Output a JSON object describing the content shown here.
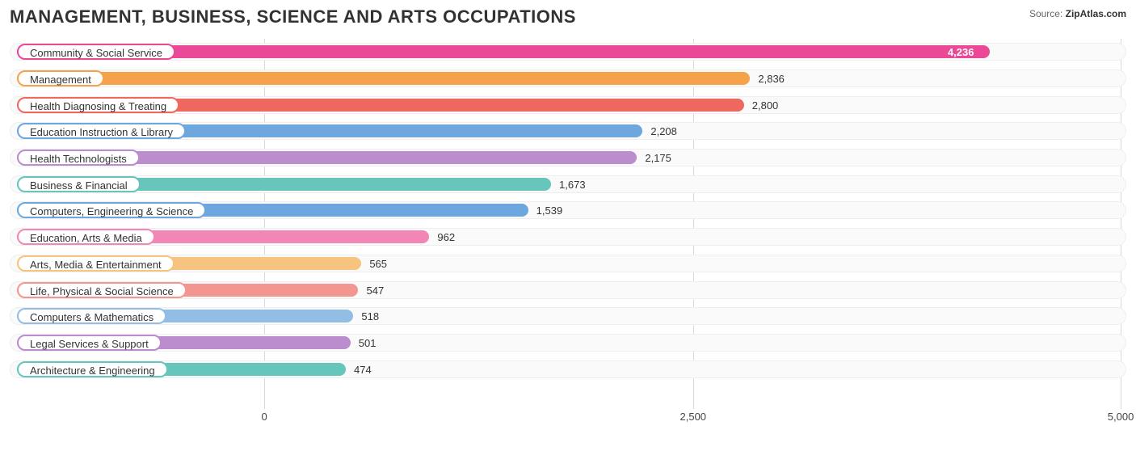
{
  "header": {
    "title": "MANAGEMENT, BUSINESS, SCIENCE AND ARTS OCCUPATIONS",
    "source_label": "Source:",
    "source_value": "ZipAtlas.com"
  },
  "chart": {
    "type": "bar-horizontal",
    "xlim": [
      -500,
      5200
    ],
    "zero_offset_pct": 22.8,
    "scale_pct_per_unit": 0.01535,
    "track_bg": "#fafafa",
    "track_border": "#eeeeee",
    "grid_color": "#d9d9d9",
    "title_fontsize": 22,
    "label_fontsize": 13,
    "pill_bg": "#ffffff",
    "xticks": [
      {
        "value": 0,
        "label": "0",
        "pos_pct": 22.8
      },
      {
        "value": 2500,
        "label": "2,500",
        "pos_pct": 61.2
      },
      {
        "value": 5000,
        "label": "5,000",
        "pos_pct": 99.5
      }
    ],
    "bars": [
      {
        "label": "Community & Social Service",
        "value": 4236,
        "display": "4,236",
        "color": "#eb4898",
        "value_inside": true
      },
      {
        "label": "Management",
        "value": 2836,
        "display": "2,836",
        "color": "#f4a34b",
        "value_inside": false
      },
      {
        "label": "Health Diagnosing & Treating",
        "value": 2800,
        "display": "2,800",
        "color": "#ef6860",
        "value_inside": false
      },
      {
        "label": "Education Instruction & Library",
        "value": 2208,
        "display": "2,208",
        "color": "#6ea7de",
        "value_inside": false
      },
      {
        "label": "Health Technologists",
        "value": 2175,
        "display": "2,175",
        "color": "#bb8cce",
        "value_inside": false
      },
      {
        "label": "Business & Financial",
        "value": 1673,
        "display": "1,673",
        "color": "#66c6bb",
        "value_inside": false
      },
      {
        "label": "Computers, Engineering & Science",
        "value": 1539,
        "display": "1,539",
        "color": "#6ea7de",
        "value_inside": false
      },
      {
        "label": "Education, Arts & Media",
        "value": 962,
        "display": "962",
        "color": "#f286b5",
        "value_inside": false
      },
      {
        "label": "Arts, Media & Entertainment",
        "value": 565,
        "display": "565",
        "color": "#f6c47e",
        "value_inside": false
      },
      {
        "label": "Life, Physical & Social Science",
        "value": 547,
        "display": "547",
        "color": "#f2968f",
        "value_inside": false
      },
      {
        "label": "Computers & Mathematics",
        "value": 518,
        "display": "518",
        "color": "#92bde4",
        "value_inside": false
      },
      {
        "label": "Legal Services & Support",
        "value": 501,
        "display": "501",
        "color": "#bb8cce",
        "value_inside": false
      },
      {
        "label": "Architecture & Engineering",
        "value": 474,
        "display": "474",
        "color": "#66c6bb",
        "value_inside": false
      }
    ]
  }
}
